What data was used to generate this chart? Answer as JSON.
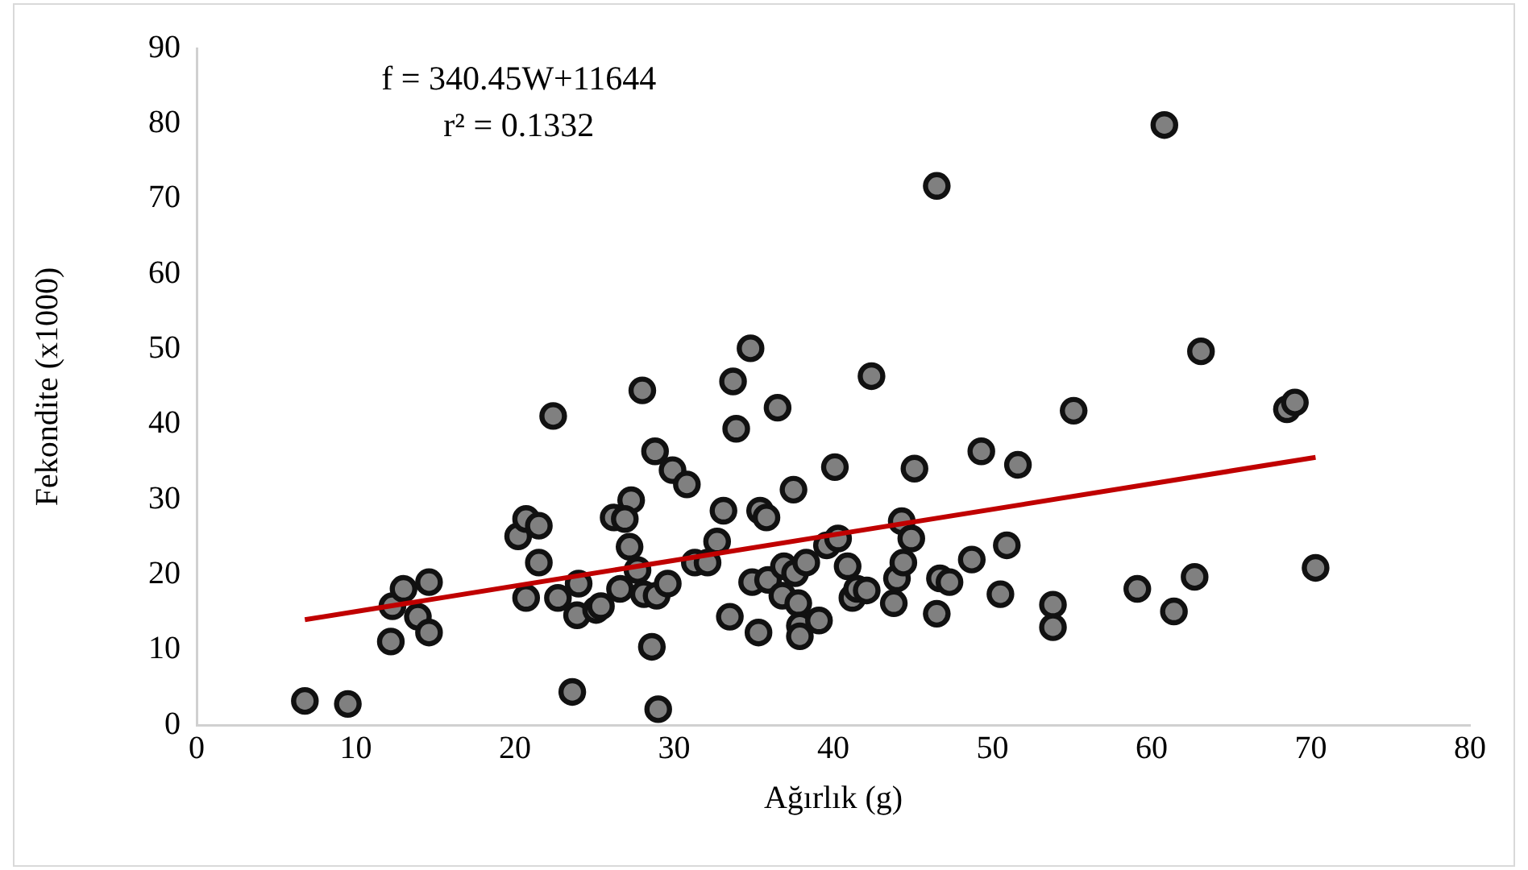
{
  "chart_data": {
    "type": "scatter",
    "xlabel": "Ağırlık (g)",
    "ylabel": "Fekondite (x1000)",
    "annotations": [
      "f = 340.45W+11644",
      "r² = 0.1332"
    ],
    "xlim": [
      0,
      80
    ],
    "xticks": [
      0,
      10,
      20,
      30,
      40,
      50,
      60,
      70,
      80
    ],
    "ylim": [
      0,
      90
    ],
    "yticks": [
      0,
      10,
      20,
      30,
      40,
      50,
      60,
      70,
      80,
      90
    ],
    "grid": false,
    "legend": false,
    "marker": "circle",
    "series": [
      {
        "color": "#808080",
        "x": [
          6.8,
          9.5,
          12.2,
          12.3,
          13.0,
          13.9,
          14.6,
          14.6,
          22.4,
          20.2,
          20.7,
          21.5,
          21.5,
          20.7,
          22.7,
          23.6,
          23.9,
          24.0,
          25.1,
          25.4,
          28.0,
          28.8,
          27.3,
          26.2,
          26.9,
          27.2,
          27.7,
          26.6,
          28.1,
          28.9,
          29.6,
          28.6,
          29.0,
          29.9,
          30.8,
          31.3,
          32.1,
          32.7,
          33.1,
          33.5,
          33.7,
          33.9,
          34.8,
          34.9,
          35.3,
          35.4,
          35.8,
          35.9,
          36.5,
          36.8,
          36.9,
          37.5,
          37.6,
          37.8,
          37.9,
          37.9,
          38.3,
          39.1,
          39.6,
          40.1,
          40.3,
          40.9,
          41.2,
          41.5,
          42.1,
          42.4,
          43.8,
          44.0,
          44.3,
          44.4,
          44.9,
          45.1,
          46.5,
          46.7,
          47.3,
          48.7,
          49.3,
          50.5,
          50.9,
          51.6,
          46.5,
          60.8,
          63.1,
          55.1,
          68.5,
          69.0,
          70.3,
          62.7,
          59.1,
          61.4,
          53.8,
          53.8
        ],
        "values": [
          3.2,
          2.8,
          11.1,
          15.8,
          18.1,
          14.4,
          19.0,
          12.3,
          41.1,
          25.1,
          27.4,
          26.5,
          21.6,
          16.9,
          16.9,
          4.4,
          14.6,
          18.8,
          15.3,
          15.8,
          44.5,
          36.4,
          29.9,
          27.6,
          27.4,
          23.7,
          20.6,
          18.1,
          17.4,
          17.2,
          18.8,
          10.4,
          2.1,
          33.9,
          32.0,
          21.6,
          21.6,
          24.4,
          28.5,
          14.4,
          45.7,
          39.4,
          50.1,
          19.0,
          12.3,
          28.5,
          27.6,
          19.3,
          42.2,
          17.2,
          21.1,
          31.3,
          20.2,
          16.2,
          13.2,
          11.8,
          21.6,
          13.9,
          23.9,
          34.3,
          24.8,
          21.1,
          16.9,
          18.1,
          17.9,
          46.4,
          16.2,
          19.5,
          27.1,
          21.6,
          24.8,
          34.1,
          14.8,
          19.5,
          19.0,
          22.0,
          36.4,
          17.4,
          23.9,
          34.6,
          71.7,
          79.8,
          49.7,
          41.8,
          42.0,
          42.9,
          20.9,
          19.7,
          18.1,
          15.1,
          16.0,
          13.0
        ]
      },
      {
        "type": "line",
        "marker": "none",
        "color": "#c00000",
        "x": [
          6.8,
          70.3
        ],
        "values": [
          14.0,
          35.6
        ]
      }
    ]
  }
}
